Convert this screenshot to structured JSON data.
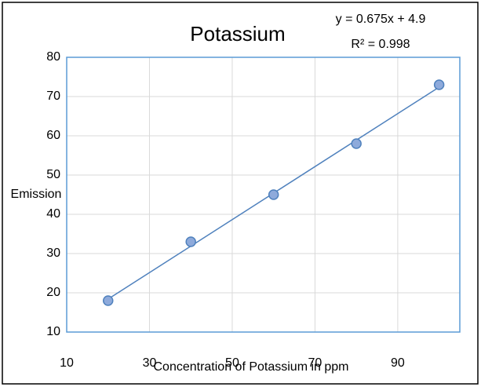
{
  "chart_data": {
    "type": "scatter",
    "title": "Potassium",
    "annotations": [
      "y = 0.675x + 4.9",
      "R² = 0.998"
    ],
    "xlabel": "Concentration of Potassium in ppm",
    "ylabel": "Emission",
    "series": [
      {
        "color": "#8eaadb",
        "x": [
          20,
          40,
          60,
          80,
          100
        ],
        "values": [
          18,
          33,
          45,
          58,
          73
        ]
      }
    ],
    "trendline_color": "#4f81bd",
    "xlim": [
      10,
      105
    ],
    "xticks": [
      10,
      30,
      50,
      70,
      90
    ],
    "ylim": [
      10,
      80
    ],
    "yticks": [
      10,
      20,
      30,
      40,
      50,
      60,
      70,
      80
    ],
    "grid": true
  }
}
